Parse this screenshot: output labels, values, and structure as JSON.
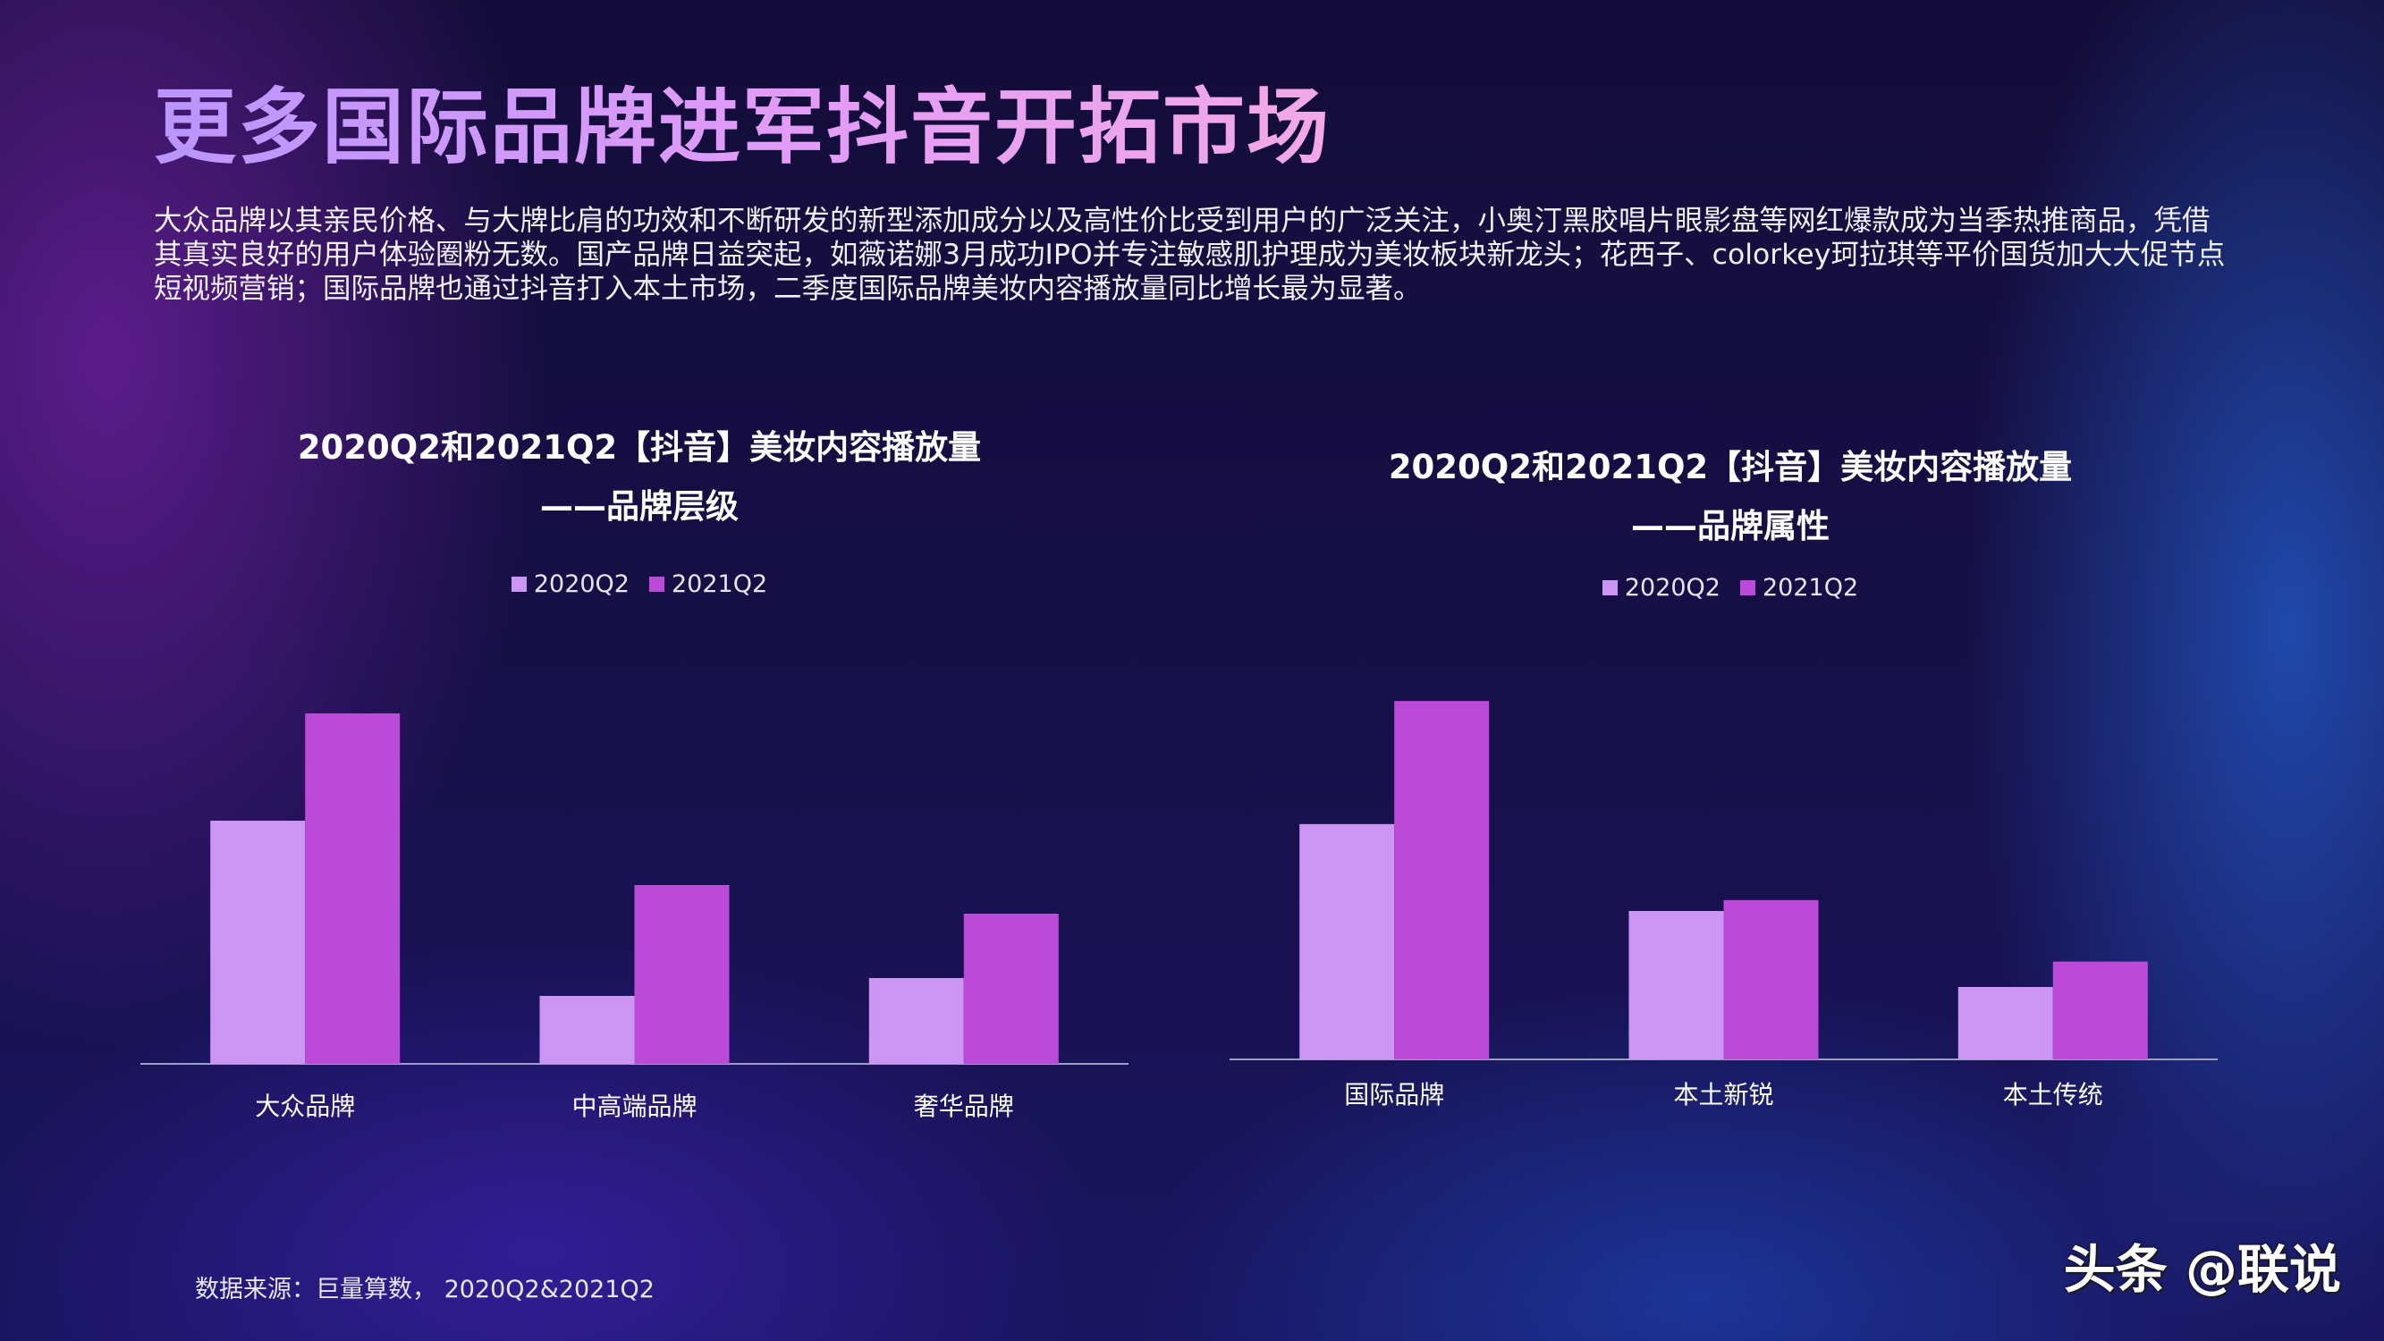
{
  "title": "更多国际品牌进军抖音开拓市场",
  "intro": "大众品牌以其亲民价格、与大牌比肩的功效和不断研发的新型添加成分以及高性价比受到用户的广泛关注，小奥汀黑胶唱片眼影盘等网红爆款成为当季热推商品，凭借其真实良好的用户体验圈粉无数。国产品牌日益突起，如薇诺娜3月成功IPO并专注敏感肌护理成为美妆板块新龙头；花西子、colorkey珂拉琪等平价国货加大大促节点短视频营销；国际品牌也通过抖音打入本土市场，二季度国际品牌美妆内容播放量同比增长最为显著。",
  "footnote": "数据来源：巨量算数， 2020Q2&2021Q2",
  "watermark": "头条 @联说",
  "colors": {
    "series_2020": "#cb96f3",
    "series_2021": "#bb4ad9",
    "axis": "#9aa0c4"
  },
  "chart_data": [
    {
      "type": "bar",
      "title": "2020Q2和2021Q2【抖音】美妆内容播放量",
      "subtitle": "——品牌层级",
      "categories": [
        "大众品牌",
        "中高端品牌",
        "奢华品牌"
      ],
      "series": [
        {
          "name": "2020Q2",
          "values": [
            68,
            19,
            24
          ]
        },
        {
          "name": "2021Q2",
          "values": [
            98,
            50,
            42
          ]
        }
      ],
      "legend": "top-center",
      "grid": false,
      "ylim": [
        0,
        100
      ]
    },
    {
      "type": "bar",
      "title": "2020Q2和2021Q2【抖音】美妆内容播放量",
      "subtitle": "——品牌属性",
      "categories": [
        "国际品牌",
        "本土新锐",
        "本土传统"
      ],
      "series": [
        {
          "name": "2020Q2",
          "values": [
            65,
            41,
            20
          ]
        },
        {
          "name": "2021Q2",
          "values": [
            99,
            44,
            27
          ]
        }
      ],
      "legend": "top-center",
      "grid": false,
      "ylim": [
        0,
        100
      ]
    }
  ]
}
